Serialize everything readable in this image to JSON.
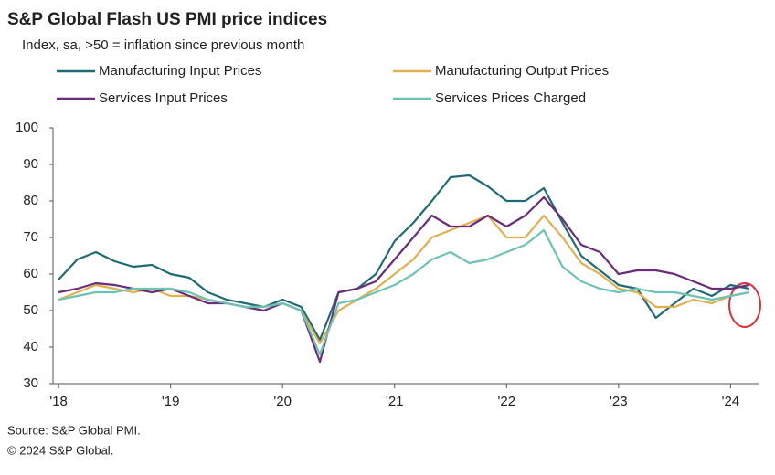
{
  "chart_data": {
    "type": "line",
    "title": "S&P Global Flash US PMI price indices",
    "subtitle": "Index, sa, >50 = inflation since previous month",
    "notes": [
      "Source: S&P Global PMI.",
      "© 2024 S&P Global."
    ],
    "x": [
      2018.0,
      2018.167,
      2018.333,
      2018.5,
      2018.667,
      2018.833,
      2019.0,
      2019.167,
      2019.333,
      2019.5,
      2019.667,
      2019.833,
      2020.0,
      2020.167,
      2020.333,
      2020.5,
      2020.667,
      2020.833,
      2021.0,
      2021.167,
      2021.333,
      2021.5,
      2021.667,
      2021.833,
      2022.0,
      2022.167,
      2022.333,
      2022.5,
      2022.667,
      2022.833,
      2023.0,
      2023.167,
      2023.333,
      2023.5,
      2023.667,
      2023.833,
      2024.0,
      2024.167
    ],
    "xlim": [
      2017.95,
      2024.25
    ],
    "xticks": [
      {
        "value": 2018,
        "label": "'18"
      },
      {
        "value": 2019,
        "label": "'19"
      },
      {
        "value": 2020,
        "label": "'20"
      },
      {
        "value": 2021,
        "label": "'21"
      },
      {
        "value": 2022,
        "label": "'22"
      },
      {
        "value": 2023,
        "label": "'23"
      },
      {
        "value": 2024,
        "label": "'24"
      }
    ],
    "ylim": [
      30,
      100
    ],
    "yticks": [
      30,
      40,
      50,
      60,
      70,
      80,
      90,
      100
    ],
    "grid": false,
    "series": [
      {
        "name": "Manufacturing Input Prices",
        "color": "#1f6b75",
        "values": [
          58.5,
          64,
          66,
          63.5,
          62,
          62.5,
          60,
          59,
          55,
          53,
          52,
          51,
          53,
          51,
          42,
          55,
          56,
          60,
          69,
          74,
          80,
          86.5,
          87,
          84,
          80,
          80,
          83.5,
          74,
          65,
          61,
          57,
          56,
          48,
          52,
          56,
          54,
          57,
          56
        ]
      },
      {
        "name": "Manufacturing Output Prices",
        "color": "#e0b050",
        "values": [
          53,
          55,
          57,
          56,
          55,
          56,
          54,
          54,
          53,
          52,
          51,
          51,
          52,
          50,
          41,
          50,
          53,
          56,
          60,
          64,
          70,
          72,
          74,
          76,
          70,
          70,
          76,
          70,
          63,
          60,
          56,
          55,
          51,
          51,
          53,
          52,
          54,
          55
        ]
      },
      {
        "name": "Services Input Prices",
        "color": "#6b2d7a",
        "values": [
          55,
          56,
          57.5,
          57,
          56,
          55,
          56,
          54,
          52,
          52,
          51,
          50,
          52,
          50,
          36,
          55,
          56,
          58,
          64,
          70,
          76,
          73,
          73,
          76,
          73,
          76,
          81,
          75,
          68,
          66,
          60,
          61,
          61,
          60,
          58,
          56,
          56,
          57
        ]
      },
      {
        "name": "Services Prices Charged",
        "color": "#6cc3b5",
        "values": [
          53,
          54,
          55,
          55,
          56,
          56,
          56,
          55,
          53,
          52,
          51,
          51,
          52,
          50,
          38,
          52,
          53,
          55,
          57,
          60,
          64,
          66,
          63,
          64,
          66,
          68,
          72,
          62,
          58,
          56,
          55,
          56,
          55,
          55,
          54,
          53,
          54,
          55
        ]
      }
    ]
  }
}
